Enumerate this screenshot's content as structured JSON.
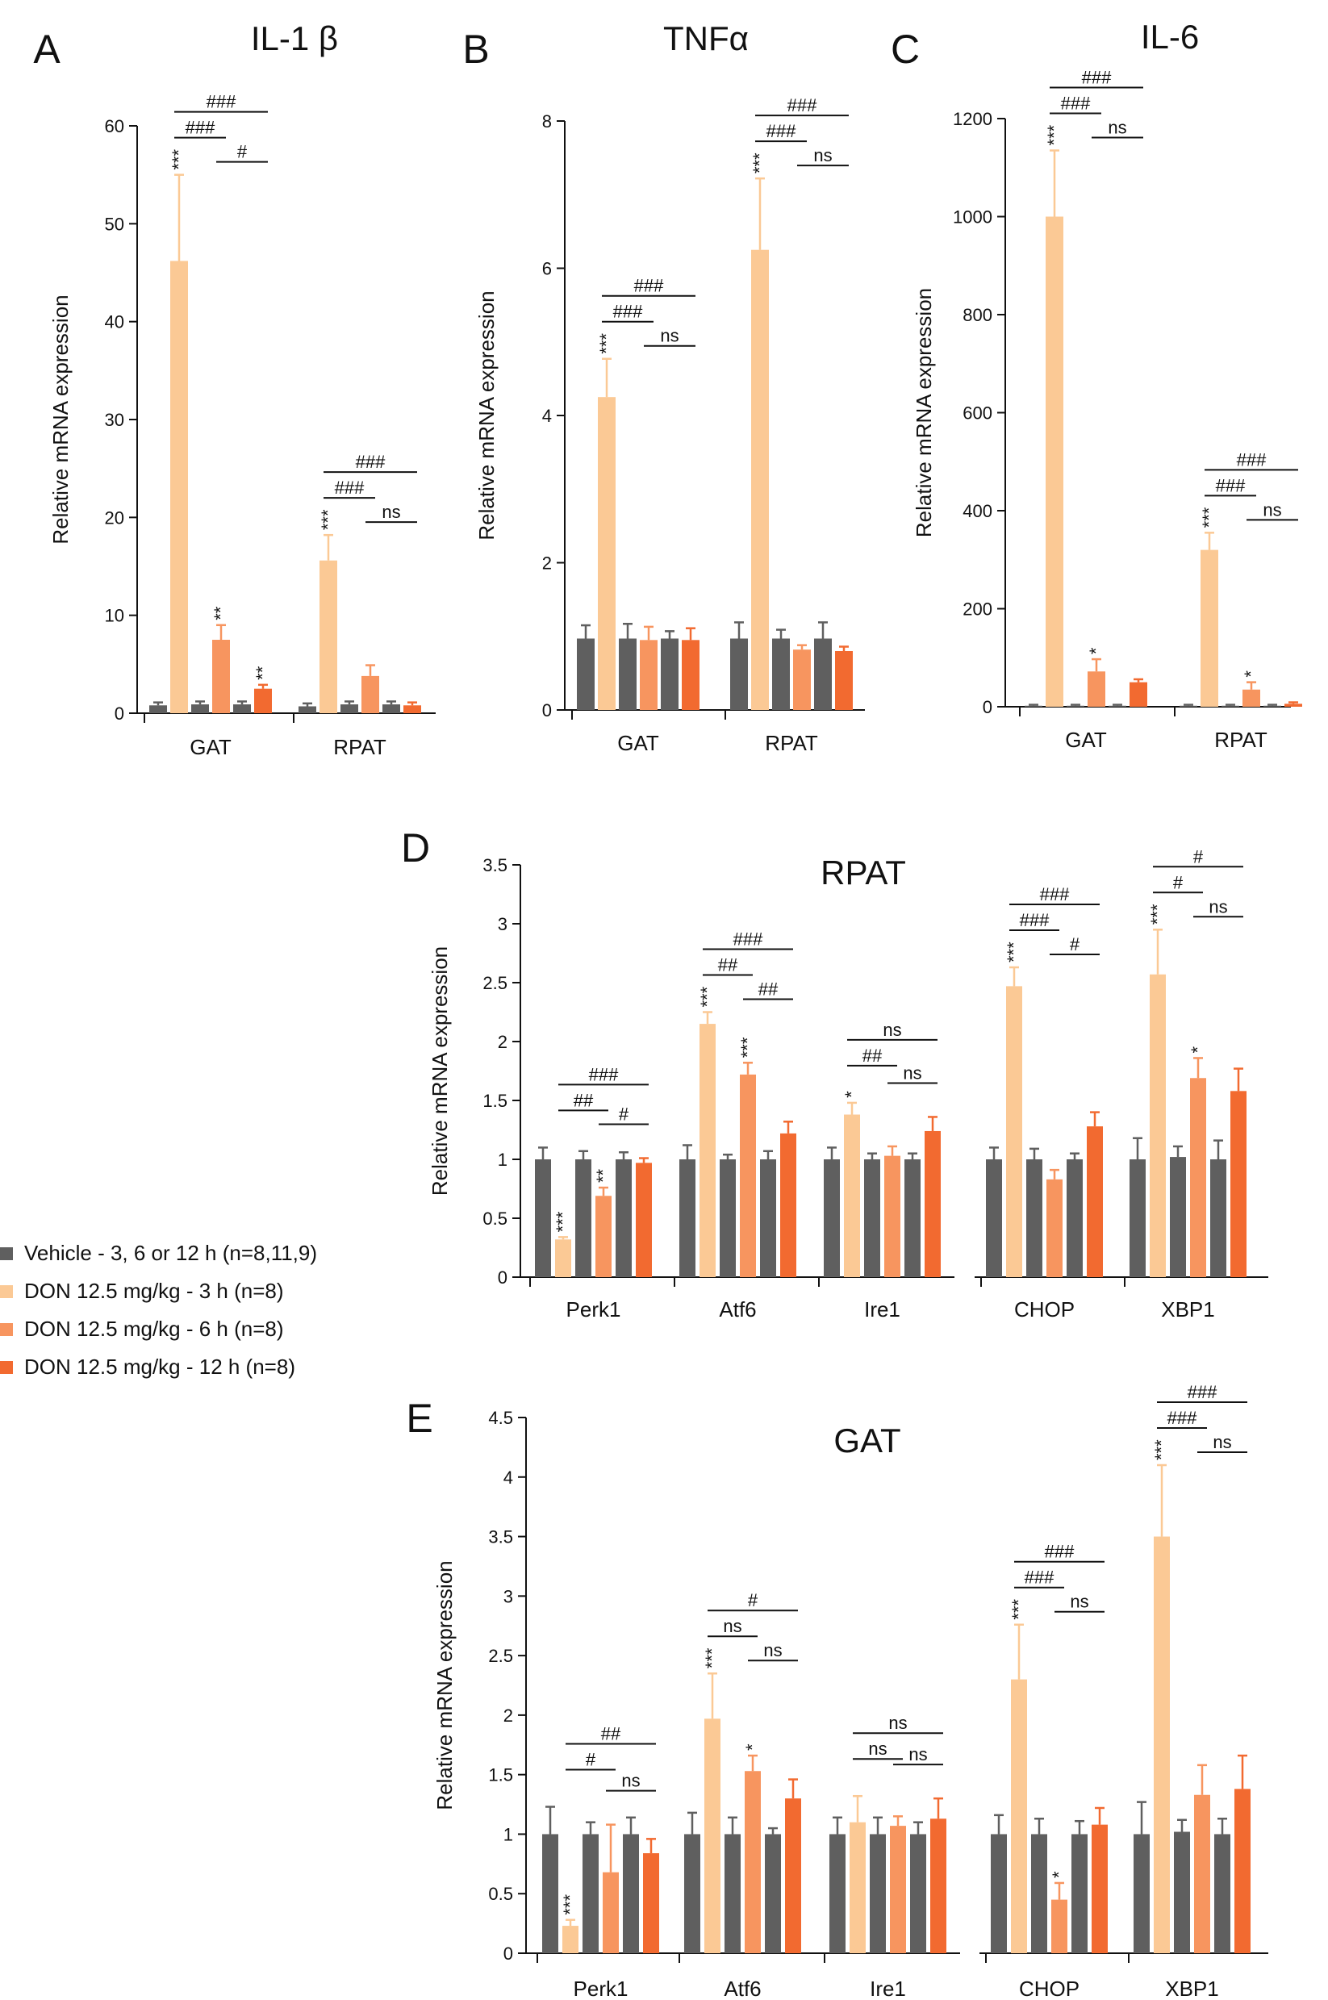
{
  "colors": {
    "vehicle": "#5f5f5f",
    "don3": "#fbc995",
    "don6": "#f7955f",
    "don12": "#f26a30",
    "axis": "#111111"
  },
  "panel_labels": {
    "A": "A",
    "B": "B",
    "C": "C",
    "D": "D",
    "E": "E"
  },
  "legend": {
    "items": [
      {
        "label": "Vehicle - 3, 6 or 12 h (n=8,11,9)",
        "color": "#5f5f5f"
      },
      {
        "label": "DON 12.5 mg/kg - 3 h (n=8)",
        "color": "#fbc995"
      },
      {
        "label": "DON 12.5 mg/kg - 6 h (n=8)",
        "color": "#f7955f"
      },
      {
        "label": "DON 12.5 mg/kg - 12 h (n=8)",
        "color": "#f26a30"
      }
    ]
  },
  "chart_data": [
    {
      "panel": "A",
      "type": "bar",
      "title": "IL-1 β",
      "ylabel": "Relative mRNA expression",
      "ylim": [
        0,
        60
      ],
      "yticks": [
        0,
        10,
        20,
        30,
        40,
        50,
        60
      ],
      "ytick_labels": [
        "0",
        "10",
        "20",
        "30",
        "40",
        "50",
        "60"
      ],
      "categories": [
        "GAT",
        "RPAT"
      ],
      "series": [
        {
          "name": "Vehicle 3 h",
          "values": [
            0.8,
            0.7
          ],
          "errors": [
            0.3,
            0.3
          ]
        },
        {
          "name": "DON 3 h",
          "values": [
            46.2,
            15.6
          ],
          "errors": [
            8.8,
            2.6
          ]
        },
        {
          "name": "Vehicle 6 h",
          "values": [
            0.9,
            0.9
          ],
          "errors": [
            0.3,
            0.3
          ]
        },
        {
          "name": "DON 6 h",
          "values": [
            7.5,
            3.8
          ],
          "errors": [
            1.5,
            1.1
          ]
        },
        {
          "name": "Vehicle 12 h",
          "values": [
            0.9,
            0.9
          ],
          "errors": [
            0.3,
            0.3
          ]
        },
        {
          "name": "DON 12 h",
          "values": [
            2.5,
            0.8
          ],
          "errors": [
            0.4,
            0.3
          ]
        }
      ],
      "stars": [
        {
          "cat": 0,
          "bar": 1,
          "text": "***"
        },
        {
          "cat": 0,
          "bar": 3,
          "text": "**"
        },
        {
          "cat": 0,
          "bar": 5,
          "text": "**"
        },
        {
          "cat": 1,
          "bar": 1,
          "text": "***"
        }
      ],
      "brackets": [
        {
          "cat": 0,
          "from": 1,
          "to": 3,
          "level": 0,
          "text": "###"
        },
        {
          "cat": 0,
          "from": 1,
          "to": 5,
          "level": 1,
          "text": "###"
        },
        {
          "cat": 0,
          "from": 3,
          "to": 5,
          "level": -1,
          "text": "#"
        },
        {
          "cat": 1,
          "from": 1,
          "to": 3,
          "level": 0,
          "text": "###"
        },
        {
          "cat": 1,
          "from": 1,
          "to": 5,
          "level": 1,
          "text": "###"
        },
        {
          "cat": 1,
          "from": 3,
          "to": 5,
          "level": -1,
          "text": "ns"
        }
      ]
    },
    {
      "panel": "B",
      "type": "bar",
      "title": "TNFα",
      "ylabel": "Relative mRNA expression",
      "ylim": [
        0,
        8
      ],
      "yticks": [
        0,
        2,
        4,
        6,
        8
      ],
      "ytick_labels": [
        "0",
        "2",
        "4",
        "6",
        "8"
      ],
      "categories": [
        "GAT",
        "RPAT"
      ],
      "series": [
        {
          "name": "Vehicle 3 h",
          "values": [
            0.97,
            0.97
          ],
          "errors": [
            0.18,
            0.22
          ]
        },
        {
          "name": "DON 3 h",
          "values": [
            4.25,
            6.25
          ],
          "errors": [
            0.52,
            0.97
          ]
        },
        {
          "name": "Vehicle 6 h",
          "values": [
            0.97,
            0.97
          ],
          "errors": [
            0.2,
            0.12
          ]
        },
        {
          "name": "DON 6 h",
          "values": [
            0.95,
            0.82
          ],
          "errors": [
            0.18,
            0.06
          ]
        },
        {
          "name": "Vehicle 12 h",
          "values": [
            0.97,
            0.97
          ],
          "errors": [
            0.1,
            0.22
          ]
        },
        {
          "name": "DON 12 h",
          "values": [
            0.95,
            0.8
          ],
          "errors": [
            0.16,
            0.06
          ]
        }
      ],
      "stars": [
        {
          "cat": 0,
          "bar": 1,
          "text": "***"
        },
        {
          "cat": 1,
          "bar": 1,
          "text": "***"
        }
      ],
      "brackets": [
        {
          "cat": 0,
          "from": 1,
          "to": 3,
          "level": 0,
          "text": "###"
        },
        {
          "cat": 0,
          "from": 1,
          "to": 5,
          "level": 1,
          "text": "###"
        },
        {
          "cat": 0,
          "from": 3,
          "to": 5,
          "level": -1,
          "text": "ns"
        },
        {
          "cat": 1,
          "from": 1,
          "to": 3,
          "level": 0,
          "text": "###"
        },
        {
          "cat": 1,
          "from": 1,
          "to": 5,
          "level": 1,
          "text": "###"
        },
        {
          "cat": 1,
          "from": 3,
          "to": 5,
          "level": -1,
          "text": "ns"
        }
      ]
    },
    {
      "panel": "C",
      "type": "bar",
      "title": "IL-6",
      "ylabel": "Relative mRNA expression",
      "ylim": [
        0,
        1200
      ],
      "yticks": [
        0,
        200,
        400,
        600,
        800,
        1000,
        1200
      ],
      "ytick_labels": [
        "0",
        "200",
        "400",
        "600",
        "800",
        "1000",
        "1200"
      ],
      "categories": [
        "GAT",
        "RPAT"
      ],
      "series": [
        {
          "name": "Vehicle 3 h",
          "values": [
            2,
            2
          ],
          "errors": [
            2,
            2
          ]
        },
        {
          "name": "DON 3 h",
          "values": [
            1000,
            320
          ],
          "errors": [
            135,
            35
          ]
        },
        {
          "name": "Vehicle 6 h",
          "values": [
            2,
            2
          ],
          "errors": [
            2,
            2
          ]
        },
        {
          "name": "DON 6 h",
          "values": [
            72,
            35
          ],
          "errors": [
            25,
            15
          ]
        },
        {
          "name": "Vehicle 12 h",
          "values": [
            2,
            2
          ],
          "errors": [
            2,
            2
          ]
        },
        {
          "name": "DON 12 h",
          "values": [
            50,
            6
          ],
          "errors": [
            6,
            3
          ]
        }
      ],
      "stars": [
        {
          "cat": 0,
          "bar": 1,
          "text": "***"
        },
        {
          "cat": 0,
          "bar": 3,
          "text": "*"
        },
        {
          "cat": 1,
          "bar": 1,
          "text": "***"
        },
        {
          "cat": 1,
          "bar": 3,
          "text": "*"
        }
      ],
      "brackets": [
        {
          "cat": 0,
          "from": 1,
          "to": 3,
          "level": 0,
          "text": "###"
        },
        {
          "cat": 0,
          "from": 1,
          "to": 5,
          "level": 1,
          "text": "###"
        },
        {
          "cat": 0,
          "from": 3,
          "to": 5,
          "level": -1,
          "text": "ns"
        },
        {
          "cat": 1,
          "from": 1,
          "to": 3,
          "level": 0,
          "text": "###"
        },
        {
          "cat": 1,
          "from": 1,
          "to": 5,
          "level": 1,
          "text": "###"
        },
        {
          "cat": 1,
          "from": 3,
          "to": 5,
          "level": -1,
          "text": "ns"
        }
      ]
    },
    {
      "panel": "D",
      "type": "bar",
      "title": "RPAT",
      "ylabel": "Relative mRNA expression",
      "ylim": [
        0,
        3.5
      ],
      "yticks": [
        0,
        0.5,
        1,
        1.5,
        2,
        2.5,
        3,
        3.5
      ],
      "ytick_labels": [
        "0",
        "0.5",
        "1",
        "1.5",
        "2",
        "2.5",
        "3",
        "3.5"
      ],
      "categories": [
        "Perk1",
        "Atf6",
        "Ire1",
        "CHOP",
        "XBP1"
      ],
      "series": [
        {
          "name": "Vehicle 3 h",
          "values": [
            1.0,
            1.0,
            1.0,
            1.0,
            1.0
          ],
          "errors": [
            0.1,
            0.12,
            0.1,
            0.1,
            0.18
          ]
        },
        {
          "name": "DON 3 h",
          "values": [
            0.32,
            2.15,
            1.38,
            2.47,
            2.57
          ],
          "errors": [
            0.02,
            0.1,
            0.1,
            0.16,
            0.38
          ]
        },
        {
          "name": "Vehicle 6 h",
          "values": [
            1.0,
            1.0,
            1.0,
            1.0,
            1.02
          ],
          "errors": [
            0.07,
            0.04,
            0.05,
            0.09,
            0.09
          ]
        },
        {
          "name": "DON 6 h",
          "values": [
            0.69,
            1.72,
            1.03,
            0.83,
            1.69
          ],
          "errors": [
            0.07,
            0.1,
            0.08,
            0.08,
            0.17
          ]
        },
        {
          "name": "Vehicle 12 h",
          "values": [
            1.0,
            1.0,
            1.0,
            1.0,
            1.0
          ],
          "errors": [
            0.06,
            0.07,
            0.05,
            0.05,
            0.16
          ]
        },
        {
          "name": "DON 12 h",
          "values": [
            0.97,
            1.22,
            1.24,
            1.28,
            1.58
          ],
          "errors": [
            0.04,
            0.1,
            0.12,
            0.12,
            0.19
          ]
        }
      ],
      "stars": [
        {
          "cat": 0,
          "bar": 1,
          "text": "***"
        },
        {
          "cat": 0,
          "bar": 3,
          "text": "**"
        },
        {
          "cat": 1,
          "bar": 1,
          "text": "***"
        },
        {
          "cat": 1,
          "bar": 3,
          "text": "***"
        },
        {
          "cat": 2,
          "bar": 1,
          "text": "*"
        },
        {
          "cat": 3,
          "bar": 1,
          "text": "***"
        },
        {
          "cat": 4,
          "bar": 1,
          "text": "***"
        },
        {
          "cat": 4,
          "bar": 3,
          "text": "*"
        }
      ],
      "brackets": [
        {
          "cat": 0,
          "from": 1,
          "to": 3,
          "level": 0,
          "text": "##"
        },
        {
          "cat": 0,
          "from": 1,
          "to": 5,
          "level": 1,
          "text": "###"
        },
        {
          "cat": 0,
          "from": 3,
          "to": 5,
          "level": -1,
          "text": "#"
        },
        {
          "cat": 1,
          "from": 1,
          "to": 3,
          "level": 0,
          "text": "##"
        },
        {
          "cat": 1,
          "from": 1,
          "to": 5,
          "level": 1,
          "text": "###"
        },
        {
          "cat": 1,
          "from": 3,
          "to": 5,
          "level": -1,
          "text": "##"
        },
        {
          "cat": 2,
          "from": 1,
          "to": 3,
          "level": 0,
          "text": "##"
        },
        {
          "cat": 2,
          "from": 1,
          "to": 5,
          "level": 1,
          "text": "ns"
        },
        {
          "cat": 2,
          "from": 3,
          "to": 5,
          "level": -1,
          "text": "ns"
        },
        {
          "cat": 3,
          "from": 1,
          "to": 3,
          "level": 0,
          "text": "###"
        },
        {
          "cat": 3,
          "from": 1,
          "to": 5,
          "level": 1,
          "text": "###"
        },
        {
          "cat": 3,
          "from": 3,
          "to": 5,
          "level": -1,
          "text": "#"
        },
        {
          "cat": 4,
          "from": 1,
          "to": 3,
          "level": 0,
          "text": "#"
        },
        {
          "cat": 4,
          "from": 1,
          "to": 5,
          "level": 1,
          "text": "#"
        },
        {
          "cat": 4,
          "from": 3,
          "to": 5,
          "level": -1,
          "text": "ns"
        }
      ]
    },
    {
      "panel": "E",
      "type": "bar",
      "title": "GAT",
      "ylabel": "Relative mRNA expression",
      "ylim": [
        0,
        4.5
      ],
      "yticks": [
        0,
        0.5,
        1,
        1.5,
        2,
        2.5,
        3,
        3.5,
        4,
        4.5
      ],
      "ytick_labels": [
        "0",
        "0.5",
        "1",
        "1.5",
        "2",
        "2.5",
        "3",
        "3.5",
        "4",
        "4.5"
      ],
      "categories": [
        "Perk1",
        "Atf6",
        "Ire1",
        "CHOP",
        "XBP1"
      ],
      "series": [
        {
          "name": "Vehicle 3 h",
          "values": [
            1.0,
            1.0,
            1.0,
            1.0,
            1.0
          ],
          "errors": [
            0.23,
            0.18,
            0.14,
            0.16,
            0.27
          ]
        },
        {
          "name": "DON 3 h",
          "values": [
            0.23,
            1.97,
            1.1,
            2.3,
            3.5
          ],
          "errors": [
            0.05,
            0.38,
            0.22,
            0.46,
            0.6
          ]
        },
        {
          "name": "Vehicle 6 h",
          "values": [
            1.0,
            1.0,
            1.0,
            1.0,
            1.02
          ],
          "errors": [
            0.1,
            0.14,
            0.14,
            0.13,
            0.1
          ]
        },
        {
          "name": "DON 6 h",
          "values": [
            0.68,
            1.53,
            1.07,
            0.45,
            1.33
          ],
          "errors": [
            0.4,
            0.13,
            0.08,
            0.14,
            0.25
          ]
        },
        {
          "name": "Vehicle 12 h",
          "values": [
            1.0,
            1.0,
            1.0,
            1.0,
            1.0
          ],
          "errors": [
            0.14,
            0.05,
            0.1,
            0.11,
            0.13
          ]
        },
        {
          "name": "DON 12 h",
          "values": [
            0.84,
            1.3,
            1.13,
            1.08,
            1.38
          ],
          "errors": [
            0.12,
            0.16,
            0.17,
            0.14,
            0.28
          ]
        }
      ],
      "stars": [
        {
          "cat": 0,
          "bar": 1,
          "text": "***"
        },
        {
          "cat": 1,
          "bar": 1,
          "text": "***"
        },
        {
          "cat": 1,
          "bar": 3,
          "text": "*"
        },
        {
          "cat": 3,
          "bar": 1,
          "text": "***"
        },
        {
          "cat": 3,
          "bar": 3,
          "text": "*"
        },
        {
          "cat": 4,
          "bar": 1,
          "text": "***"
        }
      ],
      "brackets": [
        {
          "cat": 0,
          "from": 1,
          "to": 3,
          "level": 0,
          "text": "#"
        },
        {
          "cat": 0,
          "from": 1,
          "to": 5,
          "level": 1,
          "text": "##"
        },
        {
          "cat": 0,
          "from": 3,
          "to": 5,
          "level": -1,
          "text": "ns"
        },
        {
          "cat": 1,
          "from": 1,
          "to": 3,
          "level": 0,
          "text": "ns"
        },
        {
          "cat": 1,
          "from": 1,
          "to": 5,
          "level": 1,
          "text": "#"
        },
        {
          "cat": 1,
          "from": 3,
          "to": 5,
          "level": -1,
          "text": "ns"
        },
        {
          "cat": 2,
          "from": 1,
          "to": 3,
          "level": 0,
          "text": "ns"
        },
        {
          "cat": 2,
          "from": 1,
          "to": 5,
          "level": 1,
          "text": "ns"
        },
        {
          "cat": 2,
          "from": 3,
          "to": 5,
          "level": -1,
          "text": "ns"
        },
        {
          "cat": 3,
          "from": 1,
          "to": 3,
          "level": 0,
          "text": "###"
        },
        {
          "cat": 3,
          "from": 1,
          "to": 5,
          "level": 1,
          "text": "###"
        },
        {
          "cat": 3,
          "from": 3,
          "to": 5,
          "level": -1,
          "text": "ns"
        },
        {
          "cat": 4,
          "from": 1,
          "to": 3,
          "level": 0,
          "text": "###"
        },
        {
          "cat": 4,
          "from": 1,
          "to": 5,
          "level": 1,
          "text": "###"
        },
        {
          "cat": 4,
          "from": 3,
          "to": 5,
          "level": -1,
          "text": "ns"
        }
      ]
    }
  ]
}
